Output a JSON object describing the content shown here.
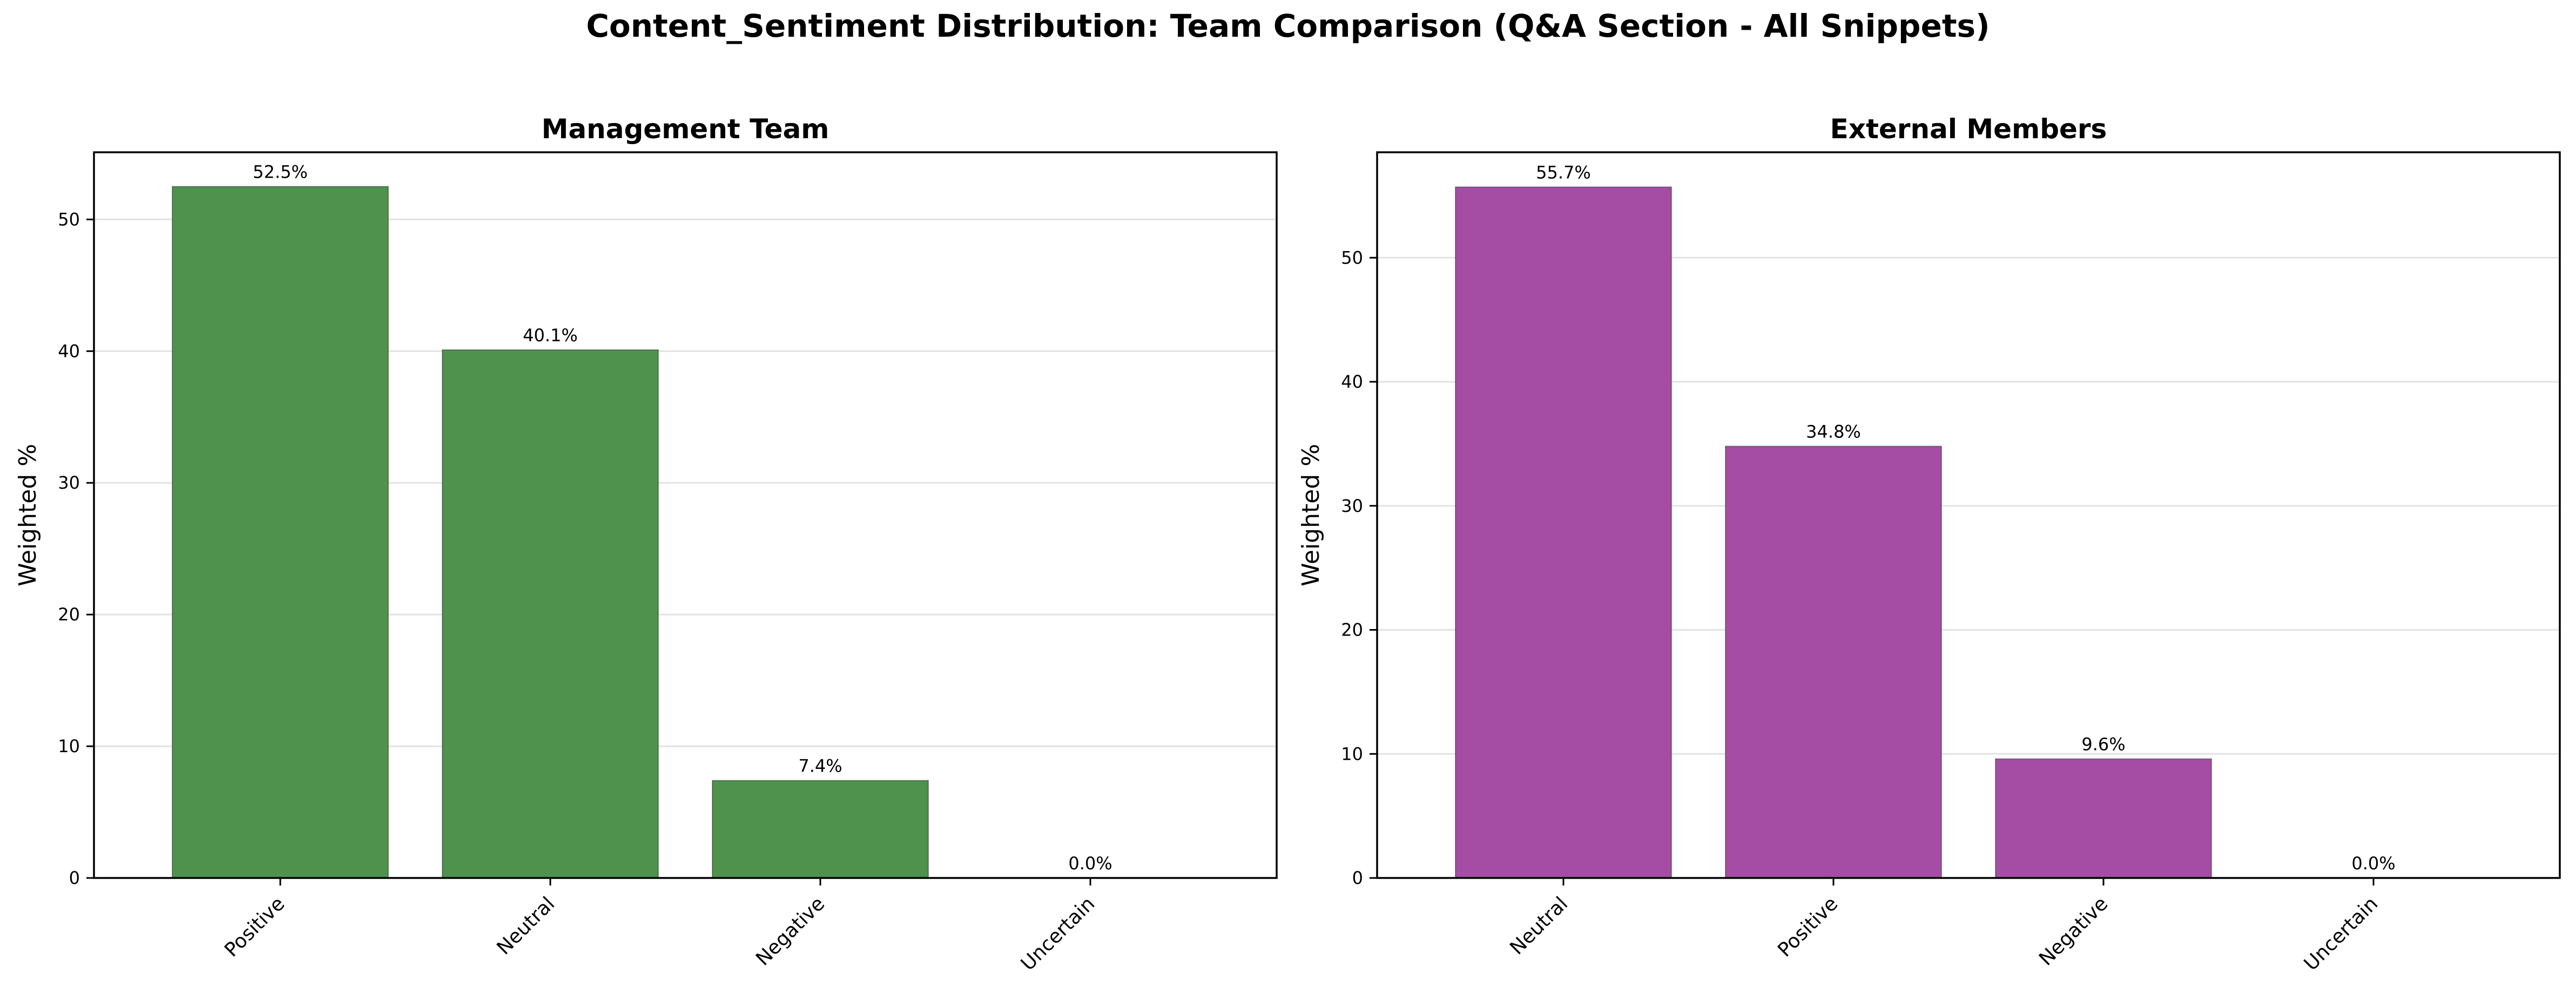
{
  "figure": {
    "title": "Content_Sentiment Distribution: Team Comparison (Q&A Section - All Snippets)"
  },
  "chart_data": [
    {
      "type": "bar",
      "title": "Management Team",
      "xlabel": "",
      "ylabel": "Weighted %",
      "categories": [
        "Positive",
        "Neutral",
        "Negative",
        "Uncertain"
      ],
      "values": [
        52.5,
        40.1,
        7.4,
        0.0
      ],
      "data_labels": [
        "52.5%",
        "40.1%",
        "7.4%",
        "0.0%"
      ],
      "yticks": [
        0,
        10,
        20,
        30,
        40,
        50
      ],
      "ylim": [
        0,
        55.1
      ],
      "bar_color": "#4e924e",
      "grid": "y",
      "legend": "none"
    },
    {
      "type": "bar",
      "title": "External Members",
      "xlabel": "",
      "ylabel": "Weighted %",
      "categories": [
        "Neutral",
        "Positive",
        "Negative",
        "Uncertain"
      ],
      "values": [
        55.7,
        34.8,
        9.6,
        0.0
      ],
      "data_labels": [
        "55.7%",
        "34.8%",
        "9.6%",
        "0.0%"
      ],
      "yticks": [
        0,
        10,
        20,
        30,
        40,
        50
      ],
      "ylim": [
        0,
        58.5
      ],
      "bar_color": "#a54da5",
      "grid": "y",
      "legend": "none"
    }
  ]
}
